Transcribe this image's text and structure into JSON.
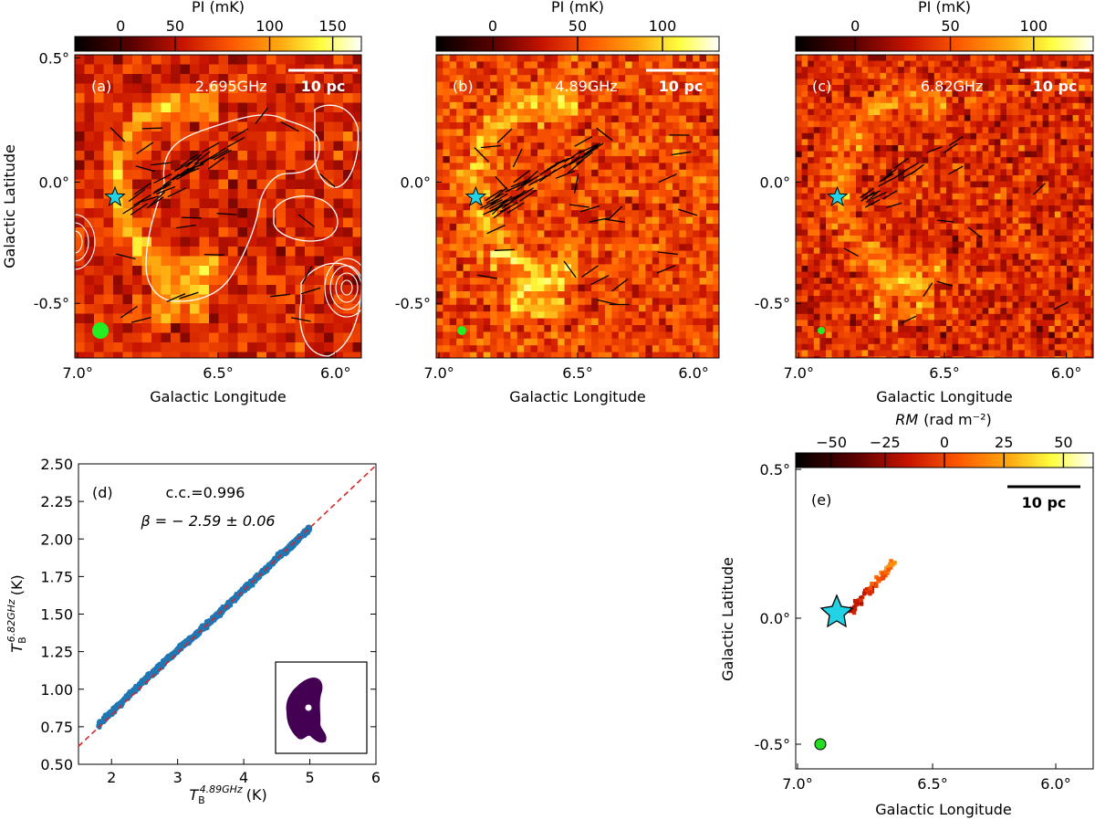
{
  "figure": {
    "maps": [
      {
        "label": "(a)",
        "freq": "2.695GHz",
        "cbar": {
          "title": "PI (mK)",
          "ticks": [
            "0",
            "50",
            "100",
            "150"
          ]
        },
        "scalebar": "10 pc",
        "xlabel": "Galactic Longitude",
        "ylabel": "Galactic Latitude",
        "xticks": [
          "7.0°",
          "6.5°",
          "6.0°"
        ],
        "yticks": [
          "0.5°",
          "0.0°",
          "-0.5°"
        ]
      },
      {
        "label": "(b)",
        "freq": "4.89GHz",
        "cbar": {
          "title": "PI (mK)",
          "ticks": [
            "0",
            "50",
            "100"
          ]
        },
        "scalebar": "10 pc",
        "xlabel": "Galactic Longitude",
        "xticks": [
          "7.0°",
          "6.5°",
          "6.0°"
        ],
        "yticks": [
          "0.0°",
          "-0.5°"
        ]
      },
      {
        "label": "(c)",
        "freq": "6.82GHz",
        "cbar": {
          "title": "PI (mK)",
          "ticks": [
            "0",
            "50",
            "100"
          ]
        },
        "scalebar": "10 pc",
        "xlabel": "Galactic Longitude",
        "xticks": [
          "7.0°",
          "6.5°",
          "6.0°"
        ],
        "yticks": [
          "0.0°",
          "-0.5°"
        ]
      }
    ],
    "rm_map": {
      "label": "(e)",
      "cbar": {
        "title": "RM",
        "units": "(rad m⁻²)",
        "ticks": [
          "−50",
          "−25",
          "0",
          "25",
          "50"
        ]
      },
      "scalebar": "10 pc",
      "xlabel": "Galactic Longitude",
      "ylabel": "Galactic Latitude",
      "xticks": [
        "7.0°",
        "6.5°",
        "6.0°"
      ],
      "yticks": [
        "0.5°",
        "0.0°",
        "-0.5°"
      ]
    },
    "scatter_panel": {
      "label": "(d)",
      "cc_text": "c.c.=0.996",
      "beta_text": "β = − 2.59 ± 0.06",
      "xlabel_main": "T",
      "xlabel_sub": "B",
      "xlabel_sup": "4.89GHz",
      "xlabel_unit": "(K)",
      "ylabel_main": "T",
      "ylabel_sub": "B",
      "ylabel_sup": "6.82GHz",
      "ylabel_unit": "(K)",
      "xticks": [
        "2",
        "3",
        "4",
        "5",
        "6"
      ],
      "yticks": [
        "0.50",
        "0.75",
        "1.00",
        "1.25",
        "1.50",
        "1.75",
        "2.00",
        "2.25",
        "2.50"
      ]
    }
  },
  "chart_data": {
    "type": "scatter",
    "title": "",
    "xlabel": "T_B^4.89GHz (K)",
    "ylabel": "T_B^6.82GHz (K)",
    "xlim": [
      1.5,
      6.0
    ],
    "ylim": [
      0.5,
      2.5
    ],
    "correlation_coefficient": 0.996,
    "spectral_index": -2.59,
    "spectral_index_err": 0.06,
    "fit_line": {
      "x": [
        1.5,
        6.0
      ],
      "y": [
        0.62,
        2.49
      ],
      "style": "red dashed"
    },
    "cluster_trend": {
      "x": [
        1.8,
        2.5,
        3.0,
        3.5,
        4.0,
        4.5,
        5.0
      ],
      "y": [
        0.76,
        1.06,
        1.26,
        1.45,
        1.66,
        1.87,
        2.07
      ]
    },
    "point_color": "#1f77b4",
    "line_color": "#d62728"
  }
}
